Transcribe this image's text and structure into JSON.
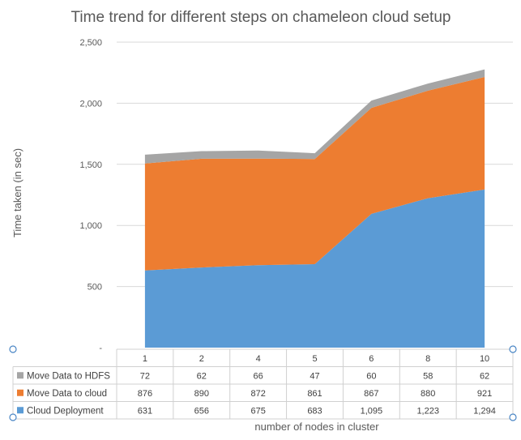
{
  "chart_data": {
    "type": "area",
    "stacked": true,
    "title": "Time trend for different steps on chameleon cloud setup",
    "xlabel": "number of nodes in cluster",
    "ylabel": "Time taken (in sec)",
    "categories": [
      "1",
      "2",
      "4",
      "5",
      "6",
      "8",
      "10"
    ],
    "ylim": [
      0,
      2500
    ],
    "yticks": [
      0,
      500,
      1000,
      1500,
      2000,
      2500
    ],
    "ytick_labels": [
      "-",
      "500",
      "1,000",
      "1,500",
      "2,000",
      "2,500"
    ],
    "grid": true,
    "legend": "data-table",
    "series": [
      {
        "name": "Cloud Deployment",
        "color": "#5b9bd5",
        "values": [
          631,
          656,
          675,
          683,
          1095,
          1223,
          1294
        ],
        "labels": [
          "631",
          "656",
          "675",
          "683",
          "1,095",
          "1,223",
          "1,294"
        ]
      },
      {
        "name": "Move Data to cloud",
        "color": "#ed7d31",
        "values": [
          876,
          890,
          872,
          861,
          867,
          880,
          921
        ],
        "labels": [
          "876",
          "890",
          "872",
          "861",
          "867",
          "880",
          "921"
        ]
      },
      {
        "name": "Move Data to HDFS",
        "color": "#a5a5a5",
        "values": [
          72,
          62,
          66,
          47,
          60,
          58,
          62
        ],
        "labels": [
          "72",
          "62",
          "66",
          "47",
          "60",
          "58",
          "62"
        ]
      }
    ]
  }
}
